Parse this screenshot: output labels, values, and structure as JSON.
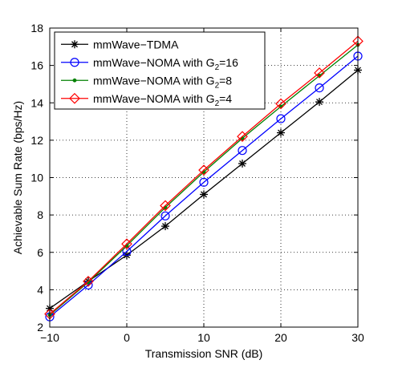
{
  "chart_data": {
    "type": "line",
    "title": "",
    "xlabel": "Transmission SNR (dB)",
    "ylabel": "Achievable Sum Rate (bps/Hz)",
    "xlim": [
      -10,
      30
    ],
    "ylim": [
      2,
      18
    ],
    "x_ticks": [
      -10,
      0,
      10,
      20,
      30
    ],
    "x_tick_labels": [
      "−10",
      "0",
      "10",
      "20",
      "30"
    ],
    "y_ticks": [
      2,
      4,
      6,
      8,
      10,
      12,
      14,
      16,
      18
    ],
    "y_tick_labels": [
      "2",
      "4",
      "6",
      "8",
      "10",
      "12",
      "14",
      "16",
      "18"
    ],
    "grid": true,
    "legend_position": "top-left",
    "x": [
      -10,
      -5,
      0,
      5,
      10,
      15,
      20,
      25,
      30
    ],
    "series": [
      {
        "name": "mmWave−TDMA",
        "sub": "",
        "color": "#000000",
        "marker": "asterisk",
        "values": [
          3.0,
          4.45,
          5.85,
          7.4,
          9.1,
          10.75,
          12.4,
          14.05,
          15.75
        ]
      },
      {
        "name": "mmWave−NOMA with G",
        "sub": "2",
        "suffix": "=16",
        "color": "#0000ff",
        "marker": "circle",
        "values": [
          2.55,
          4.25,
          6.05,
          7.95,
          9.75,
          11.45,
          13.15,
          14.8,
          16.5
        ]
      },
      {
        "name": "mmWave−NOMA with G",
        "sub": "2",
        "suffix": "=8",
        "color": "#008000",
        "marker": "dot",
        "values": [
          2.65,
          4.4,
          6.35,
          8.4,
          10.3,
          12.1,
          13.8,
          15.45,
          17.1
        ]
      },
      {
        "name": "mmWave−NOMA with G",
        "sub": "2",
        "suffix": "=4",
        "color": "#ff0000",
        "marker": "diamond",
        "values": [
          2.7,
          4.45,
          6.45,
          8.5,
          10.4,
          12.2,
          13.95,
          15.6,
          17.3
        ]
      }
    ]
  }
}
